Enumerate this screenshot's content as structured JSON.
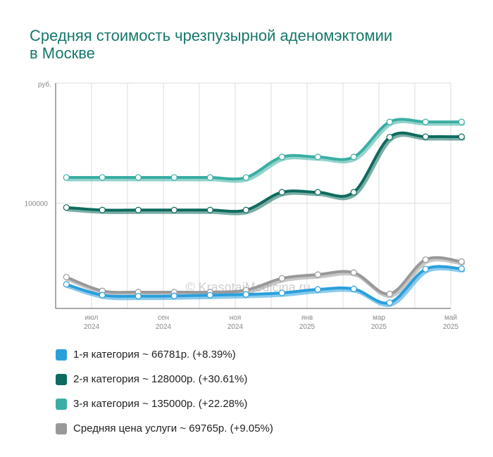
{
  "chart_data": {
    "type": "line",
    "title": "Средняя стоимость чрезпузырной аденомэктомии в Москве",
    "y_unit": "руб.",
    "y_tick_labels": [
      "100000"
    ],
    "ylim": [
      58000,
      148000
    ],
    "x_tick_labels": [
      {
        "index": 1,
        "month": "июл",
        "year": "2024"
      },
      {
        "index": 3,
        "month": "сен",
        "year": "2024"
      },
      {
        "index": 5,
        "month": "ноя",
        "year": "2024"
      },
      {
        "index": 7,
        "month": "янв",
        "year": "2025"
      },
      {
        "index": 9,
        "month": "мар",
        "year": "2025"
      },
      {
        "index": 11,
        "month": "май",
        "year": "2025"
      }
    ],
    "x": [
      "2024-06",
      "2024-07",
      "2024-08",
      "2024-09",
      "2024-10",
      "2024-11",
      "2024-12",
      "2025-01",
      "2025-02",
      "2025-03",
      "2025-04",
      "2025-05"
    ],
    "grid": true,
    "legend_position": "bottom",
    "watermark": "© KrasotaiMedicina.ru",
    "series": [
      {
        "name": "1-я категория",
        "color": "#2a9fdc",
        "price": "66781р.",
        "change": "(+8.39%)",
        "values": [
          67600,
          63300,
          62900,
          63000,
          63300,
          63600,
          64200,
          65600,
          65800,
          60300,
          73700,
          73900
        ]
      },
      {
        "name": "2-я категория",
        "color": "#0e6b5e",
        "price": "128000р.",
        "change": "(+30.61%)",
        "values": [
          98300,
          97300,
          97300,
          97300,
          97300,
          97300,
          104400,
          104400,
          104400,
          126400,
          126600,
          126600
        ]
      },
      {
        "name": "3-я категория",
        "color": "#3aaea3",
        "price": "135000р.",
        "change": "(+22.28%)",
        "values": [
          110300,
          110300,
          110300,
          110300,
          110300,
          110300,
          118500,
          118500,
          118500,
          132500,
          132500,
          132500
        ]
      },
      {
        "name": "Средняя цена услуги",
        "color": "#999999",
        "price": "69765р.",
        "change": "(+9.05%)",
        "values": [
          70500,
          65000,
          64500,
          64500,
          64500,
          65300,
          70000,
          71500,
          72300,
          63800,
          77500,
          76700
        ]
      }
    ]
  }
}
